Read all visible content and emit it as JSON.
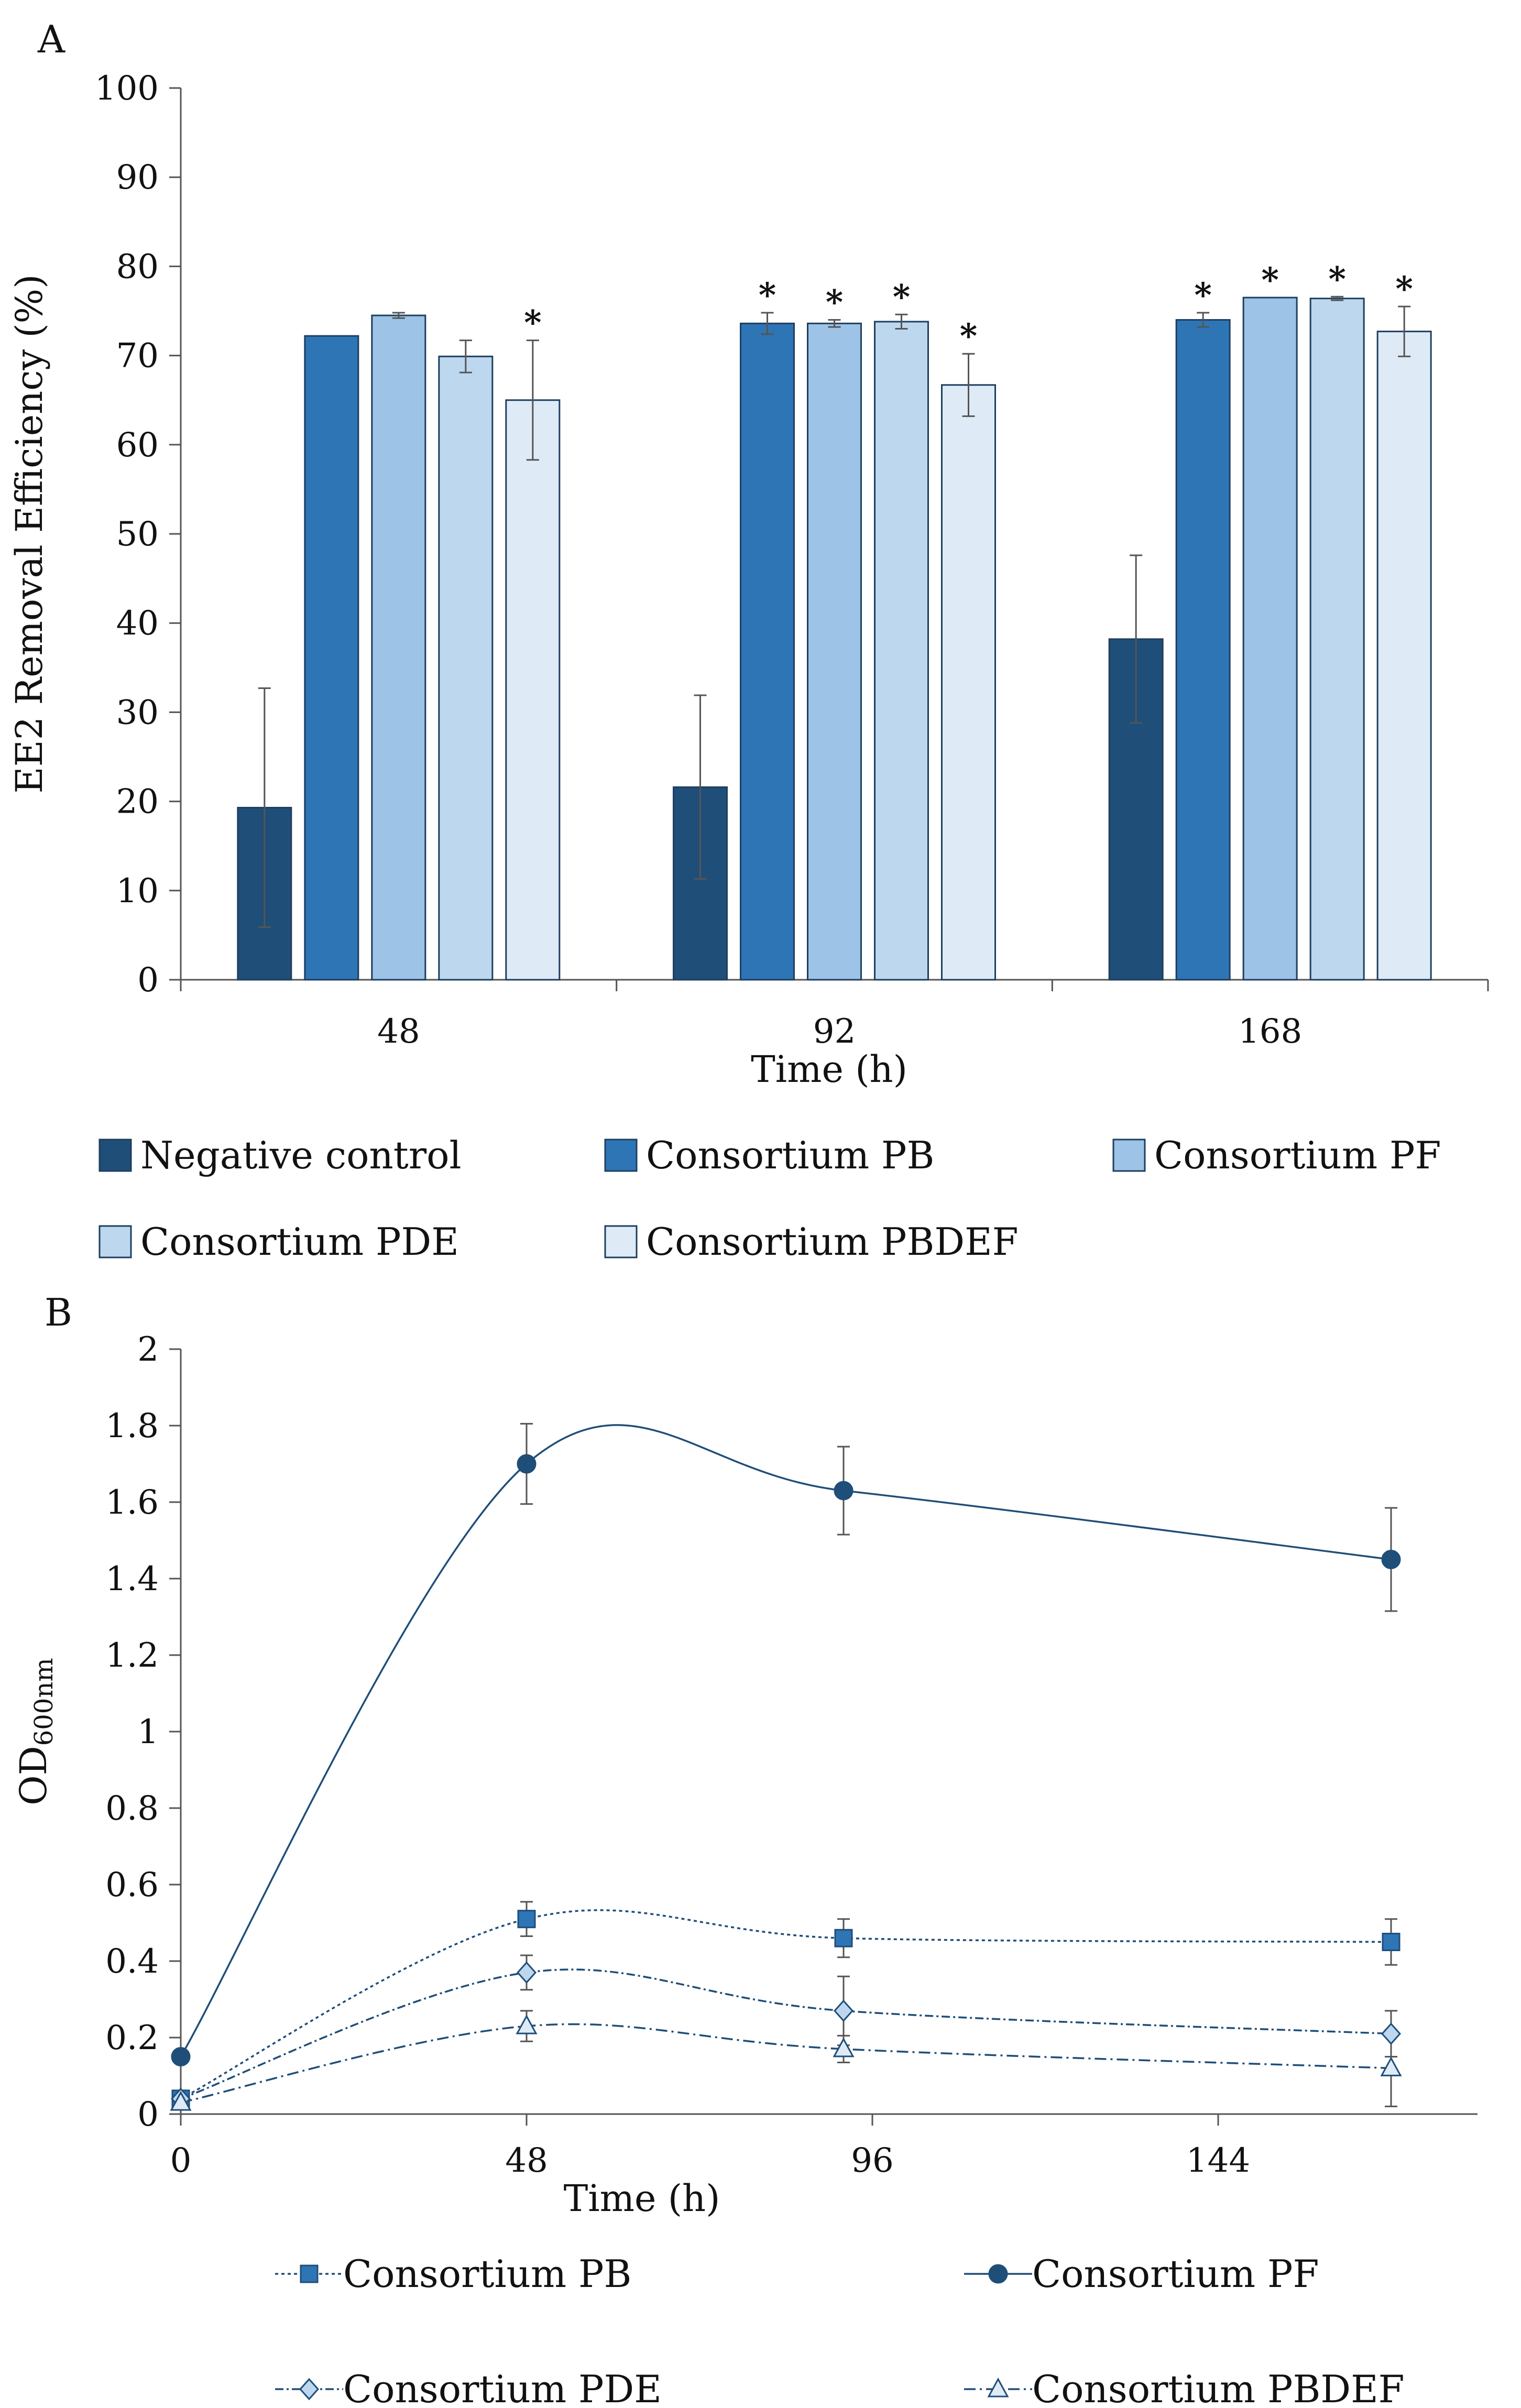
{
  "chart_data": [
    {
      "panel": "A",
      "type": "bar",
      "xlabel": "Time (h)",
      "ylabel": "EE2 Removal Efficiency (%)",
      "ylim": [
        0,
        100
      ],
      "yticks": [
        0,
        10,
        20,
        30,
        40,
        50,
        60,
        70,
        80,
        90,
        100
      ],
      "categories": [
        "48",
        "92",
        "168"
      ],
      "legend_position": "bottom",
      "series": [
        {
          "name": "Negative control",
          "color": "#1f4e79",
          "values": [
            19.3,
            21.6,
            38.2
          ],
          "errors": [
            13.4,
            10.3,
            9.4
          ],
          "significant": [
            false,
            false,
            false
          ]
        },
        {
          "name": "Consortium PB",
          "color": "#2e75b6",
          "values": [
            72.2,
            73.6,
            74.0
          ],
          "errors": [
            0,
            1.2,
            0.8
          ],
          "significant": [
            false,
            true,
            true
          ]
        },
        {
          "name": "Consortium PF",
          "color": "#9dc3e6",
          "values": [
            74.5,
            73.6,
            76.5
          ],
          "errors": [
            0.3,
            0.4,
            0
          ],
          "significant": [
            false,
            true,
            true
          ]
        },
        {
          "name": "Consortium PDE",
          "color": "#bdd7ee",
          "values": [
            69.9,
            73.8,
            76.4
          ],
          "errors": [
            1.8,
            0.8,
            0.2
          ],
          "significant": [
            false,
            true,
            true
          ]
        },
        {
          "name": "Consortium PBDEF",
          "color": "#deebf7",
          "values": [
            65.0,
            66.7,
            72.7
          ],
          "errors": [
            6.7,
            3.5,
            2.8
          ],
          "significant": [
            true,
            true,
            true
          ]
        }
      ],
      "significance_marker": "*"
    },
    {
      "panel": "B",
      "type": "line",
      "xlabel": "Time (h)",
      "ylabel_main": "OD",
      "ylabel_sub": "600nm",
      "xlim": [
        0,
        180
      ],
      "xticks": [
        0,
        48,
        96,
        144
      ],
      "ylim": [
        0,
        2
      ],
      "yticks": [
        0,
        0.2,
        0.4,
        0.6,
        0.8,
        1,
        1.2,
        1.4,
        1.6,
        1.8,
        2
      ],
      "ytick_labels": [
        "0",
        "0.2",
        "0.4",
        "0.6",
        "0.8",
        "1",
        "1.2",
        "1.4",
        "1.6",
        "1.8",
        "2"
      ],
      "x": [
        0,
        48,
        92,
        168
      ],
      "legend_position": "bottom",
      "series": [
        {
          "name": "Consortium PB",
          "marker": "square",
          "dash": "6 6",
          "color": "#2e75b6",
          "values": [
            0.04,
            0.51,
            0.46,
            0.45
          ],
          "errors": [
            0.01,
            0.045,
            0.05,
            0.06
          ]
        },
        {
          "name": "Consortium PF",
          "marker": "circle",
          "dash": "",
          "color": "#1f4e79",
          "values": [
            0.15,
            1.7,
            1.63,
            1.45
          ],
          "errors": [
            0.01,
            0.105,
            0.115,
            0.135
          ]
        },
        {
          "name": "Consortium PDE",
          "marker": "diamond",
          "dash": "16 6 4 6",
          "color": "#9dc3e6",
          "values": [
            0.04,
            0.37,
            0.27,
            0.21
          ],
          "errors": [
            0.01,
            0.045,
            0.09,
            0.06
          ]
        },
        {
          "name": "Consortium PBDEF",
          "marker": "triangle",
          "dash": "22 8 4 8",
          "color": "#deebf7",
          "values": [
            0.03,
            0.23,
            0.17,
            0.12
          ],
          "errors": [
            0.01,
            0.04,
            0.035,
            0.1
          ]
        }
      ]
    }
  ]
}
